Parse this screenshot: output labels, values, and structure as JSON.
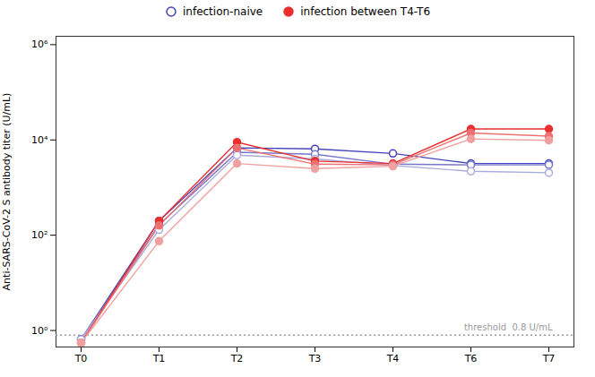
{
  "chart_data": {
    "type": "line",
    "categories": [
      "T0",
      "T1",
      "T2",
      "T3",
      "T4",
      "T6",
      "T7"
    ],
    "ylabel": "Anti-SARS-CoV-2 S antibody titer (U/mL)",
    "log": "y",
    "ylim": [
      0.45,
      1500000
    ],
    "yticks": [
      {
        "value": 1,
        "label": "10⁰"
      },
      {
        "value": 100,
        "label": "10²"
      },
      {
        "value": 10000,
        "label": "10⁴"
      },
      {
        "value": 1000000,
        "label": "10⁶"
      }
    ],
    "grid": false,
    "legend": "top",
    "series": [
      {
        "name": "infection-naive",
        "color": "#4444BB",
        "marker": "circle_open",
        "values": [
          0.65,
          200,
          6800,
          6500,
          5200,
          3200,
          3200
        ]
      },
      {
        "color": "#7777CC",
        "marker": "circle_open",
        "values": [
          0.65,
          165,
          5500,
          5000,
          3100,
          3000,
          3000
        ]
      },
      {
        "color": "#AAAADD",
        "marker": "circle_open",
        "values": [
          0.65,
          130,
          4800,
          4000,
          2900,
          2200,
          2050
        ]
      },
      {
        "name": "infection between T4-T6",
        "color": "#E83030",
        "marker": "circle",
        "values": [
          0.55,
          200,
          9000,
          3600,
          3200,
          17000,
          17000
        ]
      },
      {
        "color": "#EE7070",
        "marker": "circle",
        "values": [
          0.55,
          160,
          6800,
          3100,
          3000,
          14000,
          12000
        ]
      },
      {
        "color": "#F0A0A0",
        "marker": "circle",
        "values": [
          0.55,
          75,
          3200,
          2500,
          2800,
          10500,
          9800
        ]
      }
    ],
    "annotations": [
      {
        "text": "threshold  0.8 U/mL",
        "y": 0.8,
        "line_style": "dotted",
        "color": "#999999"
      }
    ]
  }
}
